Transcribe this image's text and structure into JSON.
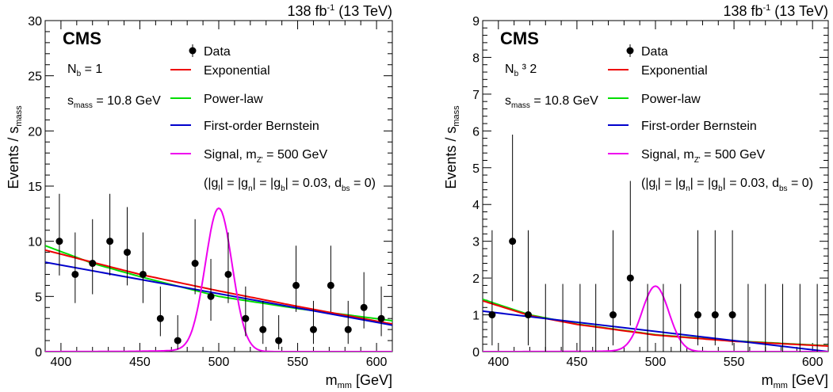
{
  "chart_data": [
    {
      "type": "scatter",
      "lumi": "138 fb",
      "lumi_sup": "-1",
      "energy": " (13 TeV)",
      "experiment": "CMS",
      "category_label": "N",
      "category_sub": "b",
      "category_value": " = 1",
      "sigma_label": "s",
      "sigma_sub": "mass",
      "sigma_value": " = 10.8 GeV",
      "ylabel": "Events / ",
      "ylabel_s": "s",
      "ylabel_sub": "mass",
      "xlabel": "m",
      "xlabel_sub": "mm",
      "xlabel_unit": " [GeV]",
      "xlim": [
        390,
        610
      ],
      "ylim": [
        0,
        30
      ],
      "xticks": [
        400,
        450,
        500,
        550,
        600
      ],
      "yticks": [
        0,
        5,
        10,
        15,
        20,
        25,
        30
      ],
      "x_minor_step": 10,
      "y_minor_step": 1,
      "legend": {
        "data": "Data",
        "exponential": "Exponential",
        "powerlaw": "Power-law",
        "bernstein": "First-order Bernstein",
        "signal": "Signal, m",
        "signal_sub": "Z'",
        "signal_value": " = 500 GeV",
        "coupling_line": "(|g",
        "g_l": "l",
        "g_n": "n",
        "g_b": "b",
        "d_bs": "bs",
        "coupling_value": " = 0.03, d",
        "coupling_end": " = 0)"
      },
      "data_points": {
        "x": [
          399,
          409,
          420,
          431,
          442,
          452,
          463,
          474,
          485,
          495,
          506,
          517,
          528,
          538,
          549,
          560,
          571,
          582,
          592,
          603
        ],
        "y": [
          10,
          7,
          8,
          10,
          9,
          7,
          3,
          1,
          8,
          5,
          7,
          3,
          2,
          1,
          6,
          2,
          6,
          2,
          4,
          3
        ],
        "yerr_up": [
          4.3,
          3.8,
          4.0,
          4.3,
          4.1,
          3.8,
          2.9,
          2.3,
          4.0,
          3.4,
          3.8,
          2.9,
          2.6,
          2.3,
          3.6,
          2.6,
          3.6,
          2.6,
          3.2,
          2.9
        ],
        "yerr_down": [
          3.1,
          2.6,
          2.8,
          3.1,
          3.0,
          2.6,
          1.6,
          0.8,
          2.8,
          2.2,
          2.6,
          1.6,
          1.3,
          0.8,
          2.4,
          1.3,
          2.4,
          1.3,
          1.9,
          1.6
        ]
      },
      "exponential": {
        "x": [
          390,
          450,
          500,
          550,
          610
        ],
        "y": [
          9.2,
          7.0,
          5.5,
          4.1,
          2.5
        ]
      },
      "powerlaw": {
        "x": [
          390,
          420,
          450,
          500,
          550,
          610
        ],
        "y": [
          9.6,
          8.0,
          6.8,
          5.0,
          3.9,
          2.8
        ]
      },
      "bernstein": {
        "x": [
          390,
          610
        ],
        "y": [
          8.1,
          2.4
        ]
      },
      "signal": {
        "mass": 500,
        "width": 8.5,
        "peak": 13.0,
        "tail": 0.35,
        "color": "#ee00ee"
      },
      "colors": {
        "exponential": "#ee0000",
        "powerlaw": "#00dd00",
        "bernstein": "#0000cc",
        "data": "#000000"
      }
    },
    {
      "type": "scatter",
      "lumi": "138 fb",
      "lumi_sup": "-1",
      "energy": " (13 TeV)",
      "experiment": "CMS",
      "category_label": "N",
      "category_sub": "b",
      "category_value": " ³ 2",
      "sigma_label": "s",
      "sigma_sub": "mass",
      "sigma_value": " = 10.8 GeV",
      "ylabel": "Events / ",
      "ylabel_s": "s",
      "ylabel_sub": "mass",
      "xlabel": "m",
      "xlabel_sub": "mm",
      "xlabel_unit": " [GeV]",
      "xlim": [
        390,
        610
      ],
      "ylim": [
        0,
        9
      ],
      "xticks": [
        400,
        450,
        500,
        550,
        600
      ],
      "yticks": [
        0,
        1,
        2,
        3,
        4,
        5,
        6,
        7,
        8,
        9
      ],
      "x_minor_step": 10,
      "y_minor_step": 0.2,
      "legend": {
        "data": "Data",
        "exponential": "Exponential",
        "powerlaw": "Power-law",
        "bernstein": "First-order Bernstein",
        "signal": "Signal, m",
        "signal_sub": "Z'",
        "signal_value": " = 500 GeV",
        "coupling_line": "(|g",
        "g_l": "l",
        "g_n": "n",
        "g_b": "b",
        "d_bs": "bs",
        "coupling_value": " = 0.03, d",
        "coupling_end": " = 0)"
      },
      "data_points": {
        "x": [
          396,
          409,
          419,
          430,
          441,
          452,
          462,
          473,
          484,
          495,
          505,
          516,
          527,
          538,
          549,
          559,
          570,
          581,
          592,
          603
        ],
        "y": [
          1,
          3,
          1,
          0,
          0,
          0,
          0,
          1,
          2,
          0,
          0,
          0,
          1,
          1,
          1,
          0,
          0,
          0,
          0,
          0
        ],
        "yerr_up": [
          2.3,
          2.9,
          2.3,
          1.84,
          1.84,
          1.84,
          1.84,
          2.3,
          2.64,
          1.84,
          1.84,
          1.84,
          2.3,
          2.3,
          2.3,
          1.84,
          1.84,
          1.84,
          1.84,
          1.84
        ],
        "yerr_down": [
          0.83,
          1.63,
          0.83,
          0,
          0,
          0,
          0,
          0.83,
          1.29,
          0,
          0,
          0,
          0.83,
          0.83,
          0.83,
          0,
          0,
          0,
          0,
          0
        ]
      },
      "exponential": {
        "x": [
          390,
          420,
          450,
          500,
          550,
          610
        ],
        "y": [
          1.38,
          0.98,
          0.74,
          0.45,
          0.28,
          0.15
        ]
      },
      "powerlaw": {
        "x": [
          390,
          420,
          450,
          500,
          550,
          610
        ],
        "y": [
          1.42,
          1.0,
          0.75,
          0.46,
          0.29,
          0.16
        ]
      },
      "bernstein": {
        "x": [
          390,
          610
        ],
        "y": [
          1.1,
          0.0
        ]
      },
      "signal": {
        "mass": 500,
        "width": 8.5,
        "peak": 1.78,
        "tail": 0.05,
        "color": "#ee00ee"
      },
      "colors": {
        "exponential": "#ee0000",
        "powerlaw": "#00dd00",
        "bernstein": "#0000cc",
        "data": "#000000"
      }
    }
  ]
}
